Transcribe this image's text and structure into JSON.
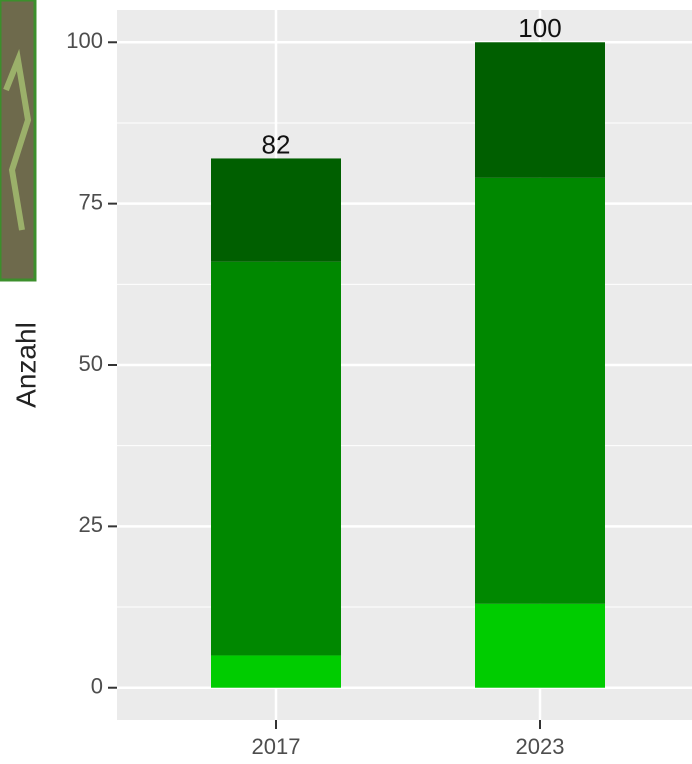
{
  "chart_data": {
    "type": "stacked-bar",
    "y_label": "Anzahl",
    "categories": [
      "2017",
      "2023"
    ],
    "series": [
      {
        "color": "#00cc00",
        "values": [
          5,
          13
        ]
      },
      {
        "color": "#008800",
        "values": [
          61,
          66
        ]
      },
      {
        "color": "#005f00",
        "values": [
          16,
          21
        ]
      }
    ],
    "totals": [
      82,
      100
    ],
    "ylim": [
      -5,
      105
    ],
    "yticks": [
      0,
      25,
      50,
      75,
      100
    ],
    "grid": true
  }
}
